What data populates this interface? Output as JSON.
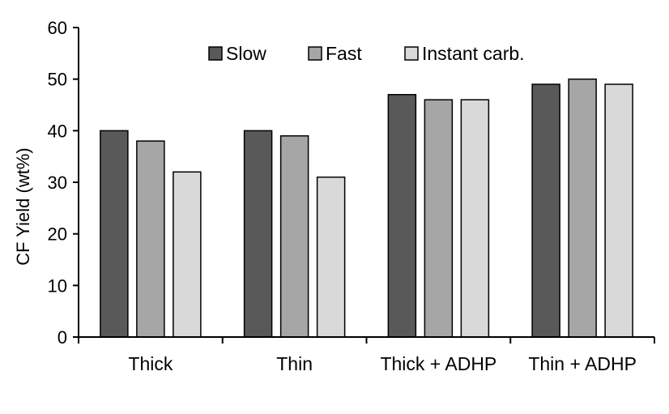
{
  "chart_data": {
    "type": "bar",
    "title": "",
    "xlabel": "",
    "ylabel": "CF Yield (wt%)",
    "ylim": [
      0,
      60
    ],
    "yticks": [
      0,
      10,
      20,
      30,
      40,
      50,
      60
    ],
    "categories": [
      "Thick",
      "Thin",
      "Thick + ADHP",
      "Thin + ADHP"
    ],
    "series": [
      {
        "name": "Slow",
        "values": [
          40,
          40,
          47,
          49
        ],
        "color": "#595959"
      },
      {
        "name": "Fast",
        "values": [
          38,
          39,
          46,
          50
        ],
        "color": "#a6a6a6"
      },
      {
        "name": "Instant carb.",
        "values": [
          32,
          31,
          46,
          49
        ],
        "color": "#d9d9d9"
      }
    ],
    "legend_position": "top",
    "grid": false
  }
}
